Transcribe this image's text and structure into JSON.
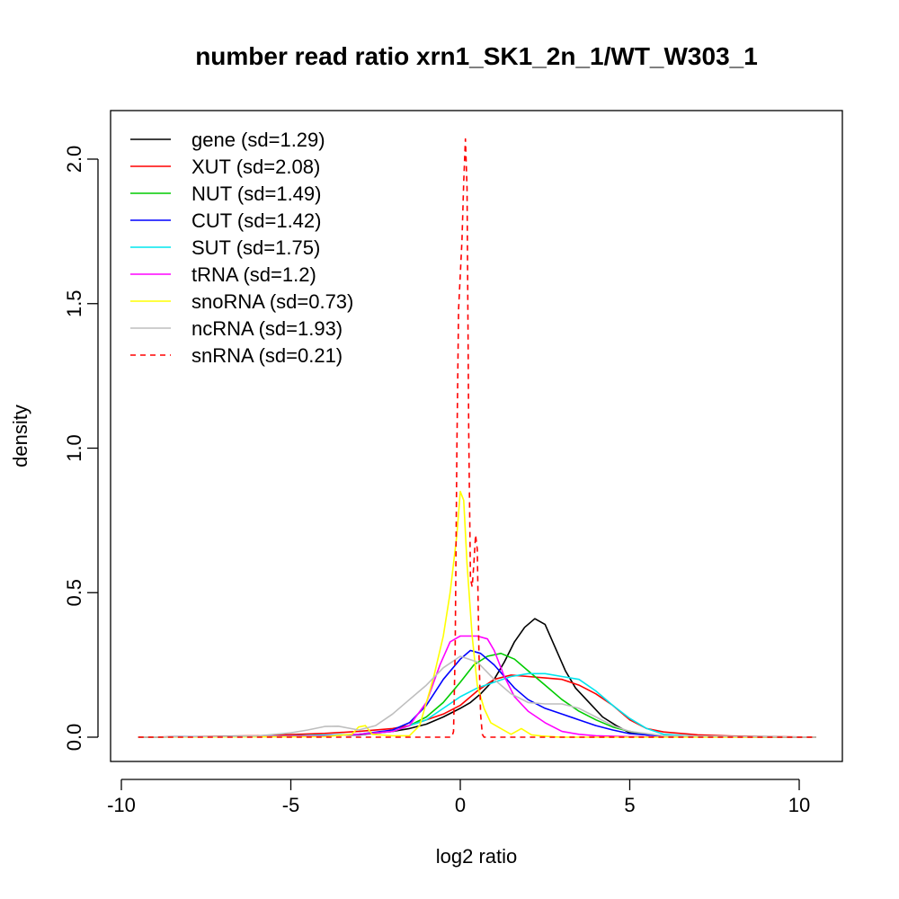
{
  "chart_data": {
    "type": "line",
    "title": "number read ratio xrn1_SK1_2n_1/WT_W303_1",
    "xlabel": "log2 ratio",
    "ylabel": "density",
    "xlim": [
      -10,
      10
    ],
    "ylim": [
      0,
      2.0
    ],
    "x_ticks": [
      -10,
      -5,
      0,
      5,
      10
    ],
    "x_tick_labels": [
      "-10",
      "-5",
      "0",
      "5",
      "10"
    ],
    "y_ticks": [
      0.0,
      0.5,
      1.0,
      1.5,
      2.0
    ],
    "y_tick_labels": [
      "0.0",
      "0.5",
      "1.0",
      "1.5",
      "2.0"
    ],
    "grid": false,
    "legend_position": "top-left",
    "series": [
      {
        "name": "gene (sd=1.29)",
        "color": "#000000",
        "dash": false,
        "x": [
          -9.5,
          -5,
          -3,
          -2,
          -1.5,
          -1,
          -0.5,
          0,
          0.3,
          0.6,
          1,
          1.3,
          1.6,
          1.9,
          2.2,
          2.5,
          2.8,
          3.1,
          3.4,
          3.8,
          4.2,
          4.6,
          5,
          5.5,
          6,
          7,
          8,
          10.5
        ],
        "y": [
          0,
          0.004,
          0.008,
          0.02,
          0.03,
          0.045,
          0.07,
          0.1,
          0.12,
          0.15,
          0.2,
          0.26,
          0.33,
          0.38,
          0.41,
          0.39,
          0.31,
          0.23,
          0.17,
          0.12,
          0.07,
          0.04,
          0.015,
          0.008,
          0.004,
          0.002,
          0.001,
          0
        ]
      },
      {
        "name": "XUT (sd=2.08)",
        "color": "#ff0000",
        "dash": false,
        "x": [
          -9.5,
          -6,
          -4,
          -3,
          -2,
          -1.5,
          -1,
          -0.5,
          0,
          0.5,
          1,
          1.5,
          2,
          2.5,
          3,
          3.5,
          4,
          4.5,
          5,
          5.5,
          6,
          7,
          8,
          10.5
        ],
        "y": [
          0,
          0.005,
          0.013,
          0.02,
          0.03,
          0.04,
          0.06,
          0.08,
          0.11,
          0.16,
          0.2,
          0.215,
          0.21,
          0.205,
          0.2,
          0.18,
          0.15,
          0.11,
          0.06,
          0.03,
          0.018,
          0.008,
          0.004,
          0
        ]
      },
      {
        "name": "NUT (sd=1.49)",
        "color": "#00cc00",
        "dash": false,
        "x": [
          -9.5,
          -4,
          -3,
          -2,
          -1.5,
          -1,
          -0.5,
          0,
          0.4,
          0.8,
          1.2,
          1.6,
          2,
          2.5,
          3,
          3.5,
          4,
          4.5,
          5,
          5.5,
          6,
          7,
          10.5
        ],
        "y": [
          0,
          0.004,
          0.01,
          0.02,
          0.04,
          0.07,
          0.12,
          0.19,
          0.25,
          0.28,
          0.29,
          0.27,
          0.23,
          0.18,
          0.13,
          0.09,
          0.06,
          0.035,
          0.02,
          0.01,
          0.005,
          0.002,
          0
        ]
      },
      {
        "name": "CUT (sd=1.42)",
        "color": "#0000ff",
        "dash": false,
        "x": [
          -9.5,
          -4,
          -3,
          -2,
          -1.5,
          -1,
          -0.5,
          0,
          0.3,
          0.6,
          1,
          1.3,
          1.6,
          2,
          2.5,
          3,
          3.5,
          4,
          4.5,
          5,
          6,
          7,
          10.5
        ],
        "y": [
          0,
          0.005,
          0.01,
          0.025,
          0.05,
          0.11,
          0.2,
          0.27,
          0.3,
          0.29,
          0.25,
          0.21,
          0.17,
          0.13,
          0.1,
          0.08,
          0.06,
          0.04,
          0.025,
          0.012,
          0.004,
          0.002,
          0
        ]
      },
      {
        "name": "SUT (sd=1.75)",
        "color": "#00e5ee",
        "dash": false,
        "x": [
          -9.5,
          -5,
          -3,
          -2,
          -1.5,
          -1,
          -0.5,
          0,
          0.5,
          1,
          1.5,
          2,
          2.5,
          3,
          3.5,
          4,
          4.5,
          5,
          5.5,
          6,
          7,
          10.5
        ],
        "y": [
          0,
          0.004,
          0.01,
          0.02,
          0.04,
          0.06,
          0.1,
          0.14,
          0.17,
          0.19,
          0.21,
          0.22,
          0.22,
          0.21,
          0.2,
          0.16,
          0.11,
          0.065,
          0.03,
          0.01,
          0.003,
          0
        ]
      },
      {
        "name": "tRNA (sd=1.2)",
        "color": "#ff00ff",
        "dash": false,
        "x": [
          -9.5,
          -4,
          -3,
          -2.5,
          -2,
          -1.5,
          -1,
          -0.6,
          -0.3,
          0,
          0.5,
          0.8,
          1,
          1.3,
          1.6,
          2,
          2.5,
          3,
          3.5,
          4,
          5,
          6,
          10.5
        ],
        "y": [
          0,
          0.004,
          0.01,
          0.015,
          0.02,
          0.04,
          0.12,
          0.25,
          0.33,
          0.35,
          0.35,
          0.34,
          0.3,
          0.21,
          0.14,
          0.09,
          0.05,
          0.02,
          0.01,
          0.005,
          0.002,
          0.001,
          0
        ]
      },
      {
        "name": "snoRNA (sd=0.73)",
        "color": "#ffff00",
        "dash": false,
        "x": [
          -9.5,
          -4,
          -3.2,
          -3,
          -2.8,
          -2.6,
          -2,
          -1.5,
          -1.2,
          -0.8,
          -0.5,
          -0.3,
          -0.1,
          0,
          0.1,
          0.2,
          0.35,
          0.5,
          0.7,
          0.9,
          1.2,
          1.5,
          1.8,
          2.1,
          2.4,
          2.8,
          3,
          4,
          10.5
        ],
        "y": [
          0,
          0.002,
          0.01,
          0.035,
          0.04,
          0.01,
          0.005,
          0.005,
          0.04,
          0.2,
          0.35,
          0.5,
          0.7,
          0.85,
          0.82,
          0.6,
          0.35,
          0.18,
          0.1,
          0.05,
          0.03,
          0.01,
          0.03,
          0.008,
          0.004,
          0.001,
          0,
          0,
          0
        ]
      },
      {
        "name": "ncRNA (sd=1.93)",
        "color": "#bebebe",
        "dash": false,
        "x": [
          -9.5,
          -6,
          -5,
          -4.5,
          -4,
          -3.6,
          -3,
          -2.5,
          -2,
          -1.5,
          -1,
          -0.5,
          0,
          0.5,
          1,
          1.5,
          2,
          2.5,
          3,
          3.5,
          4,
          4.5,
          5,
          6,
          10.5
        ],
        "y": [
          0,
          0.004,
          0.015,
          0.025,
          0.037,
          0.038,
          0.025,
          0.04,
          0.08,
          0.13,
          0.18,
          0.24,
          0.28,
          0.26,
          0.2,
          0.15,
          0.12,
          0.115,
          0.115,
          0.1,
          0.07,
          0.04,
          0.02,
          0.005,
          0
        ]
      },
      {
        "name": "snRNA (sd=0.21)",
        "color": "#ff0000",
        "dash": true,
        "x": [
          -9.5,
          -0.25,
          -0.2,
          -0.15,
          -0.1,
          -0.05,
          0,
          0.05,
          0.1,
          0.15,
          0.2,
          0.25,
          0.3,
          0.35,
          0.4,
          0.45,
          0.5,
          0.55,
          0.6,
          0.65,
          0.7,
          0.75,
          10.5
        ],
        "y": [
          0,
          0,
          0.02,
          0.3,
          1.0,
          1.48,
          1.6,
          1.72,
          1.92,
          2.07,
          1.9,
          1.05,
          0.55,
          0.52,
          0.6,
          0.7,
          0.65,
          0.3,
          0.08,
          0.01,
          0,
          0,
          0
        ]
      }
    ]
  }
}
